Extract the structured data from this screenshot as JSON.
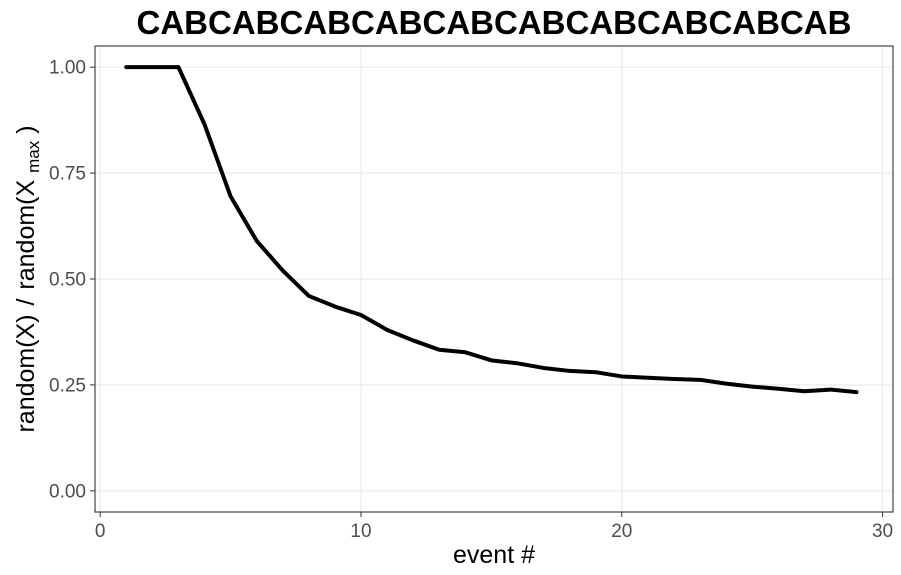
{
  "chart_data": {
    "type": "line",
    "title": "CABCABCABCABCABCABCABCABCABCAB",
    "xlabel": "event #",
    "ylabel": {
      "prefix": "random(X)",
      "separator": "/",
      "middle": "random(X",
      "subscript": "max",
      "suffix": ")"
    },
    "xlim": [
      -0.2,
      30.4
    ],
    "ylim": [
      -0.05,
      1.05
    ],
    "x_ticks": [
      0,
      10,
      20,
      30
    ],
    "x_tick_labels": [
      "0",
      "10",
      "20",
      "30"
    ],
    "y_ticks": [
      0,
      0.25,
      0.5,
      0.75,
      1
    ],
    "y_tick_labels": [
      "0.00",
      "0.25",
      "0.50",
      "0.75",
      "1.00"
    ],
    "grid": true,
    "legend": "none",
    "series": [
      {
        "color": "#000000",
        "x": [
          1,
          2,
          3,
          4,
          5,
          6,
          7,
          8,
          9,
          10,
          11,
          12,
          13,
          14,
          15,
          16,
          17,
          18,
          19,
          20,
          21,
          22,
          23,
          24,
          25,
          26,
          27,
          28,
          29
        ],
        "y": [
          1.0,
          1.0,
          1.0,
          0.865,
          0.695,
          0.59,
          0.52,
          0.46,
          0.435,
          0.415,
          0.38,
          0.355,
          0.333,
          0.327,
          0.308,
          0.301,
          0.29,
          0.283,
          0.28,
          0.27,
          0.267,
          0.264,
          0.262,
          0.253,
          0.246,
          0.241,
          0.235,
          0.239,
          0.233
        ]
      }
    ]
  }
}
